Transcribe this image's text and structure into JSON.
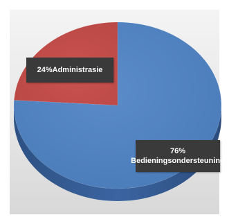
{
  "chart_data": {
    "type": "pie",
    "categories": [
      "Administrasie",
      "Bedieningsondersteuning"
    ],
    "values": [
      24,
      76
    ],
    "percent_labels": [
      "24%",
      "76%"
    ],
    "colors": [
      "#c0504d",
      "#4f81bd"
    ],
    "legend": "none",
    "style": "3d"
  }
}
